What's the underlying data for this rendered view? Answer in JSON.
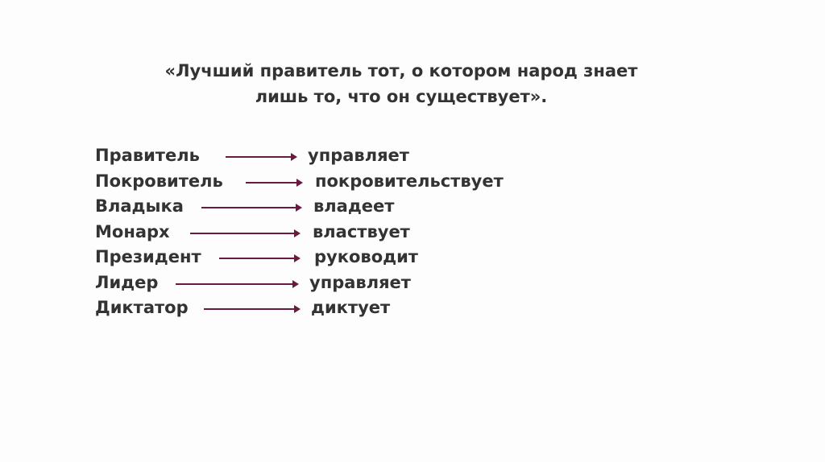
{
  "quote": {
    "line1": "«Лучший правитель тот, о котором народ знает",
    "line2": "лишь то, что он существует»."
  },
  "pairs": [
    {
      "noun": "Правитель",
      "verb": "управляет"
    },
    {
      "noun": "Покровитель",
      "verb": "покровительствует"
    },
    {
      "noun": "Владыка",
      "verb": "владеет"
    },
    {
      "noun": "Монарх",
      "verb": "властвует"
    },
    {
      "noun": "Президент",
      "verb": "руководит"
    },
    {
      "noun": "Лидер",
      "verb": "управляет"
    },
    {
      "noun": "Диктатор",
      "verb": "диктует"
    }
  ],
  "colors": {
    "text": "#333333",
    "arrow": "#6b1a3f"
  },
  "icons": {
    "connector": "arrow-right-icon"
  }
}
